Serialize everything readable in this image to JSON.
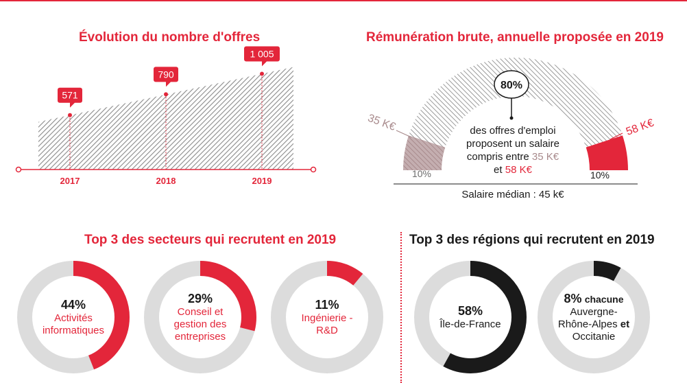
{
  "colors": {
    "accent": "#e3263a",
    "grey_hatch": "#9e9e9e",
    "donut_track": "#dcdcdc",
    "rose": "#b39a9c",
    "dark": "#1a1a1a"
  },
  "offers": {
    "title": "Évolution du nombre d'offres",
    "chart_data": {
      "type": "area",
      "x": [
        "2017",
        "2018",
        "2019"
      ],
      "values": [
        571,
        790,
        1005
      ],
      "value_labels": [
        "571",
        "790",
        "1 005"
      ]
    }
  },
  "salary": {
    "title": "Rémunération brute, annuelle proposée en 2019",
    "center_pct": "80%",
    "desc_line1": "des offres d'emploi",
    "desc_line2": "proposent un salaire",
    "desc_line3_prefix": "compris entre",
    "desc_low": "35 K€",
    "desc_and": "et",
    "desc_high": "58 K€",
    "left_label": "35 K€",
    "right_label": "58 K€",
    "left_pct": "10%",
    "right_pct": "10%",
    "median": "Salaire médian : 45 k€",
    "chart_data": {
      "type": "pie",
      "categories": [
        "10%",
        "80%",
        "10%"
      ],
      "values": [
        10,
        80,
        10
      ]
    }
  },
  "sectors": {
    "title": "Top 3 des secteurs qui recrutent en 2019",
    "items": [
      {
        "pct": "44%",
        "label": "Activités informatiques",
        "value": 44
      },
      {
        "pct": "29%",
        "label": "Conseil et gestion des entreprises",
        "value": 29
      },
      {
        "pct": "11%",
        "label": "Ingénierie - R&D",
        "value": 11
      }
    ]
  },
  "regions": {
    "title": "Top 3 des régions qui recrutent en 2019",
    "r1": {
      "pct": "58%",
      "label": "Île-de-France",
      "value": 58
    },
    "r2": {
      "pct": "8%",
      "chacune": "chacune",
      "name1": "Auvergne-",
      "name2": "Rhône-Alpes",
      "et": "et",
      "name3": "Occitanie",
      "value": 8
    }
  }
}
